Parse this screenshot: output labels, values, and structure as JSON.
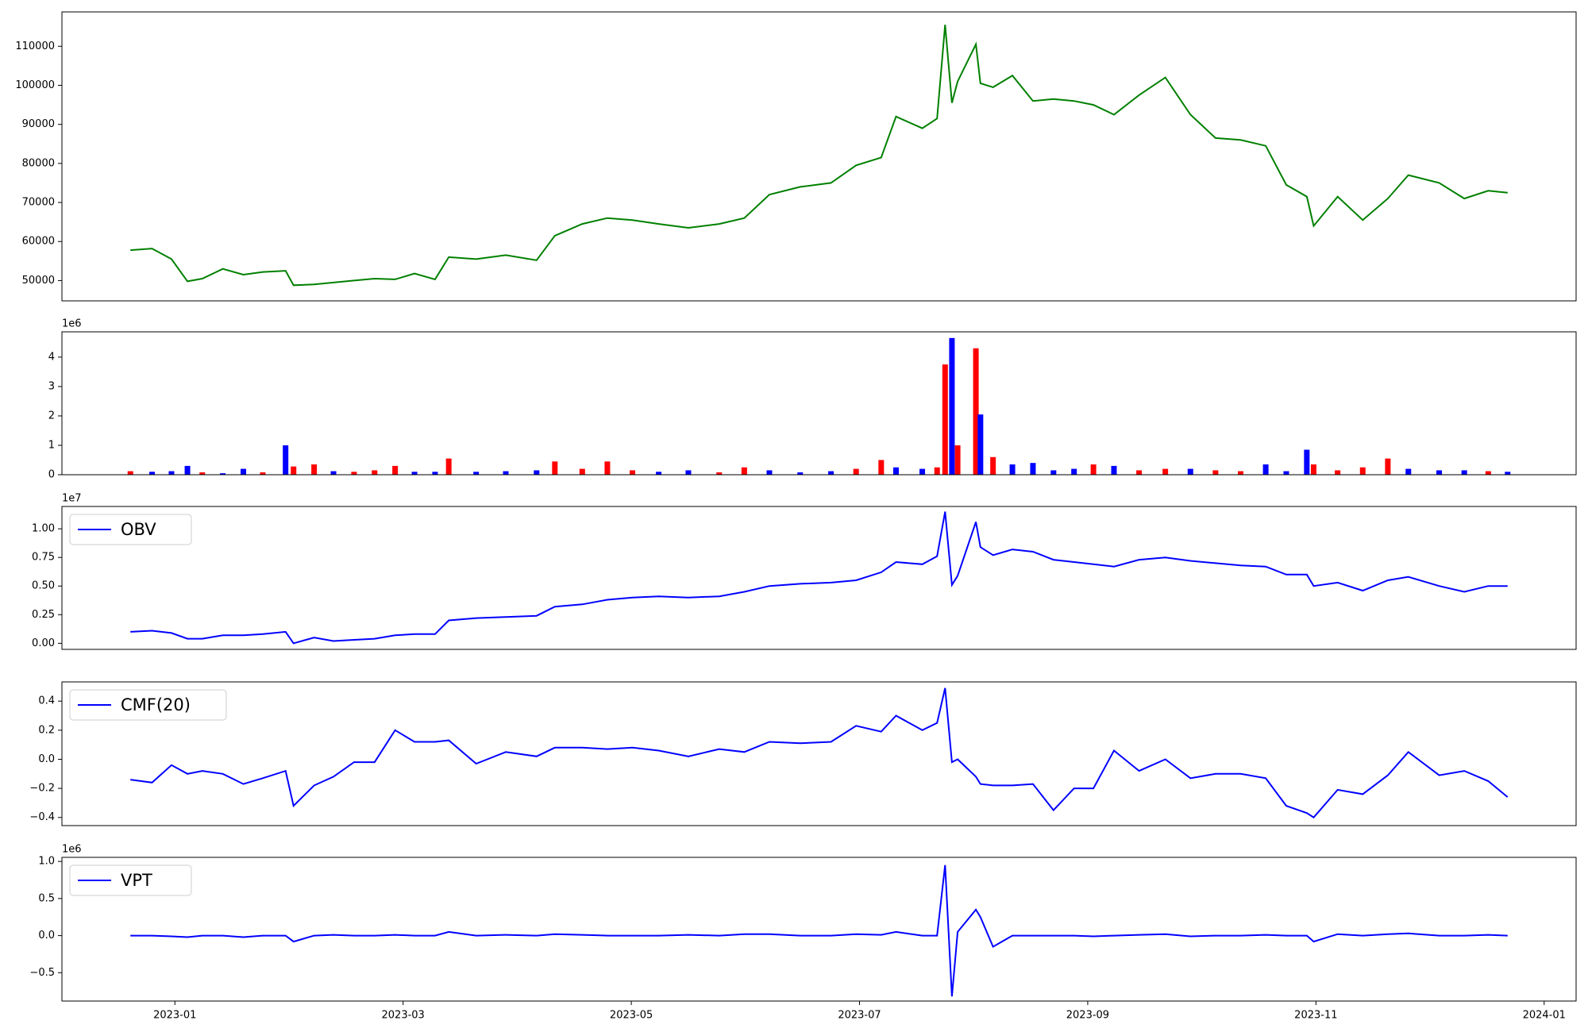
{
  "chart_data": [
    {
      "type": "line",
      "color": "green",
      "x": [
        -0.39,
        -0.2,
        -0.03,
        0.11,
        0.24,
        0.42,
        0.6,
        0.77,
        0.97,
        1.04,
        1.22,
        1.39,
        1.57,
        1.75,
        1.93,
        2.1,
        2.28,
        2.4,
        2.64,
        2.9,
        3.17,
        3.33,
        3.57,
        3.79,
        4.01,
        4.24,
        4.5,
        4.77,
        4.99,
        5.21,
        5.48,
        5.75,
        5.97,
        6.19,
        6.32,
        6.55,
        6.68,
        6.75,
        6.81,
        6.86,
        7.02,
        7.06,
        7.17,
        7.34,
        7.52,
        7.7,
        7.88,
        8.05,
        8.23,
        8.45,
        8.68,
        8.9,
        9.12,
        9.34,
        9.56,
        9.74,
        9.92,
        9.98,
        10.19,
        10.41,
        10.63,
        10.81,
        11.08,
        11.3,
        11.51,
        11.68
      ],
      "values": [
        57800,
        58200,
        55500,
        49800,
        50500,
        53000,
        51500,
        52200,
        52500,
        48800,
        49000,
        49500,
        50000,
        50500,
        50300,
        51800,
        50300,
        56000,
        55500,
        56500,
        55200,
        61500,
        64500,
        66000,
        65500,
        64500,
        63500,
        64500,
        66000,
        72000,
        74000,
        75000,
        79500,
        81500,
        92000,
        89000,
        91500,
        115500,
        95500,
        101000,
        110500,
        100500,
        99500,
        102500,
        96000,
        96500,
        96000,
        95000,
        92500,
        97500,
        102000,
        92500,
        86500,
        86000,
        84500,
        74500,
        71500,
        64000,
        71500,
        65500,
        71000,
        77000,
        75000,
        71000,
        73000,
        72500
      ],
      "ylim": [
        44800,
        118800
      ],
      "yticks": [
        50000,
        60000,
        70000,
        80000,
        90000,
        100000,
        110000
      ]
    },
    {
      "type": "bar",
      "y_offset_label": "1e6",
      "x": [
        -0.39,
        -0.2,
        -0.03,
        0.11,
        0.24,
        0.42,
        0.6,
        0.77,
        0.97,
        1.04,
        1.22,
        1.39,
        1.57,
        1.75,
        1.93,
        2.1,
        2.28,
        2.4,
        2.64,
        2.9,
        3.17,
        3.33,
        3.57,
        3.79,
        4.01,
        4.24,
        4.5,
        4.77,
        4.99,
        5.21,
        5.48,
        5.75,
        5.97,
        6.19,
        6.32,
        6.55,
        6.68,
        6.75,
        6.81,
        6.86,
        7.02,
        7.06,
        7.17,
        7.34,
        7.52,
        7.7,
        7.88,
        8.05,
        8.23,
        8.45,
        8.68,
        8.9,
        9.12,
        9.34,
        9.56,
        9.74,
        9.92,
        9.98,
        10.19,
        10.41,
        10.63,
        10.81,
        11.08,
        11.3,
        11.51,
        11.68
      ],
      "values": [
        0.12,
        0.1,
        0.12,
        0.3,
        0.08,
        0.05,
        0.2,
        0.08,
        1.0,
        0.28,
        0.35,
        0.12,
        0.1,
        0.15,
        0.3,
        0.1,
        0.1,
        0.55,
        0.1,
        0.12,
        0.15,
        0.45,
        0.2,
        0.45,
        0.15,
        0.1,
        0.15,
        0.08,
        0.25,
        0.15,
        0.08,
        0.12,
        0.2,
        0.5,
        0.25,
        0.2,
        0.25,
        3.75,
        4.65,
        1.0,
        4.3,
        2.05,
        0.6,
        0.35,
        0.4,
        0.15,
        0.2,
        0.35,
        0.3,
        0.15,
        0.2,
        0.2,
        0.15,
        0.12,
        0.35,
        0.12,
        0.85,
        0.35,
        0.15,
        0.25,
        0.55,
        0.2,
        0.15,
        0.15,
        0.12,
        0.1
      ],
      "colors": [
        "red",
        "blue",
        "blue",
        "blue",
        "red",
        "blue",
        "blue",
        "red",
        "blue",
        "red",
        "red",
        "blue",
        "red",
        "red",
        "red",
        "blue",
        "blue",
        "red",
        "blue",
        "blue",
        "blue",
        "red",
        "red",
        "red",
        "red",
        "blue",
        "blue",
        "red",
        "red",
        "blue",
        "blue",
        "blue",
        "red",
        "red",
        "blue",
        "blue",
        "red",
        "red",
        "blue",
        "red",
        "red",
        "blue",
        "red",
        "blue",
        "blue",
        "blue",
        "blue",
        "red",
        "blue",
        "red",
        "red",
        "blue",
        "red",
        "red",
        "blue",
        "blue",
        "blue",
        "red",
        "red",
        "red",
        "red",
        "blue",
        "blue",
        "blue",
        "red",
        "blue"
      ],
      "ylim": [
        0,
        4.86
      ],
      "yticks": [
        0,
        1,
        2,
        3,
        4
      ]
    },
    {
      "type": "line",
      "y_offset_label": "1e7",
      "legend": "upper left",
      "x": [
        -0.39,
        -0.2,
        -0.03,
        0.11,
        0.24,
        0.42,
        0.6,
        0.77,
        0.97,
        1.04,
        1.22,
        1.39,
        1.57,
        1.75,
        1.93,
        2.1,
        2.28,
        2.4,
        2.64,
        2.9,
        3.17,
        3.33,
        3.57,
        3.79,
        4.01,
        4.24,
        4.5,
        4.77,
        4.99,
        5.21,
        5.48,
        5.75,
        5.97,
        6.19,
        6.32,
        6.55,
        6.68,
        6.75,
        6.81,
        6.86,
        7.02,
        7.06,
        7.17,
        7.34,
        7.52,
        7.7,
        7.88,
        8.05,
        8.23,
        8.45,
        8.68,
        8.9,
        9.12,
        9.34,
        9.56,
        9.74,
        9.92,
        9.98,
        10.19,
        10.41,
        10.63,
        10.81,
        11.08,
        11.3,
        11.51,
        11.68
      ],
      "series": [
        {
          "name": "OBV",
          "color": "blue",
          "values": [
            0.1,
            0.11,
            0.09,
            0.04,
            0.04,
            0.07,
            0.07,
            0.08,
            0.1,
            0.0,
            0.05,
            0.02,
            0.03,
            0.04,
            0.07,
            0.08,
            0.08,
            0.2,
            0.22,
            0.23,
            0.24,
            0.32,
            0.34,
            0.38,
            0.4,
            0.41,
            0.4,
            0.41,
            0.45,
            0.5,
            0.52,
            0.53,
            0.55,
            0.62,
            0.71,
            0.69,
            0.76,
            1.15,
            0.51,
            0.59,
            1.06,
            0.84,
            0.77,
            0.82,
            0.8,
            0.73,
            0.71,
            0.69,
            0.67,
            0.73,
            0.75,
            0.72,
            0.7,
            0.68,
            0.67,
            0.6,
            0.6,
            0.5,
            0.53,
            0.46,
            0.55,
            0.58,
            0.5,
            0.45,
            0.5,
            0.5
          ]
        }
      ],
      "ylim": [
        -0.053,
        1.195
      ],
      "yticks": [
        {
          "value": 0,
          "label": "0.00"
        },
        {
          "value": 0.25,
          "label": "0.25"
        },
        {
          "value": 0.5,
          "label": "0.50"
        },
        {
          "value": 0.75,
          "label": "0.75"
        },
        {
          "value": 1,
          "label": "1.00"
        }
      ]
    },
    {
      "type": "line",
      "legend": "upper left",
      "x": [
        -0.39,
        -0.2,
        -0.03,
        0.11,
        0.24,
        0.42,
        0.6,
        0.77,
        0.97,
        1.04,
        1.22,
        1.39,
        1.57,
        1.75,
        1.93,
        2.1,
        2.28,
        2.4,
        2.64,
        2.9,
        3.17,
        3.33,
        3.57,
        3.79,
        4.01,
        4.24,
        4.5,
        4.77,
        4.99,
        5.21,
        5.48,
        5.75,
        5.97,
        6.19,
        6.32,
        6.55,
        6.68,
        6.75,
        6.81,
        6.86,
        7.02,
        7.06,
        7.17,
        7.34,
        7.52,
        7.7,
        7.88,
        8.05,
        8.23,
        8.45,
        8.68,
        8.9,
        9.12,
        9.34,
        9.56,
        9.74,
        9.92,
        9.98,
        10.19,
        10.41,
        10.63,
        10.81,
        11.08,
        11.3,
        11.51,
        11.68
      ],
      "series": [
        {
          "name": "CMF(20)",
          "color": "blue",
          "values": [
            -0.14,
            -0.16,
            -0.04,
            -0.1,
            -0.08,
            -0.1,
            -0.17,
            -0.13,
            -0.08,
            -0.32,
            -0.18,
            -0.12,
            -0.02,
            -0.02,
            0.2,
            0.12,
            0.12,
            0.13,
            -0.03,
            0.05,
            0.02,
            0.08,
            0.08,
            0.07,
            0.08,
            0.06,
            0.02,
            0.07,
            0.05,
            0.12,
            0.11,
            0.12,
            0.23,
            0.19,
            0.3,
            0.2,
            0.25,
            0.49,
            -0.02,
            0.0,
            -0.12,
            -0.17,
            -0.18,
            -0.18,
            -0.17,
            -0.35,
            -0.2,
            -0.2,
            0.06,
            -0.08,
            0.0,
            -0.13,
            -0.1,
            -0.1,
            -0.13,
            -0.32,
            -0.37,
            -0.4,
            -0.21,
            -0.24,
            -0.11,
            0.05,
            -0.11,
            -0.08,
            -0.15,
            -0.26
          ]
        }
      ],
      "ylim": [
        -0.456,
        0.532
      ],
      "yticks": [
        {
          "value": -0.4,
          "label": "−0.4"
        },
        {
          "value": -0.2,
          "label": "−0.2"
        },
        {
          "value": 0,
          "label": "0.0"
        },
        0.2,
        0.4
      ]
    },
    {
      "type": "line",
      "y_offset_label": "1e6",
      "legend": "upper left",
      "x": [
        -0.39,
        -0.2,
        -0.03,
        0.11,
        0.24,
        0.42,
        0.6,
        0.77,
        0.97,
        1.04,
        1.22,
        1.39,
        1.57,
        1.75,
        1.93,
        2.1,
        2.28,
        2.4,
        2.64,
        2.9,
        3.17,
        3.33,
        3.57,
        3.79,
        4.01,
        4.24,
        4.5,
        4.77,
        4.99,
        5.21,
        5.48,
        5.75,
        5.97,
        6.19,
        6.32,
        6.55,
        6.68,
        6.75,
        6.81,
        6.86,
        7.02,
        7.06,
        7.17,
        7.34,
        7.52,
        7.7,
        7.88,
        8.05,
        8.23,
        8.45,
        8.68,
        8.9,
        9.12,
        9.34,
        9.56,
        9.74,
        9.92,
        9.98,
        10.19,
        10.41,
        10.63,
        10.81,
        11.08,
        11.3,
        11.51,
        11.68
      ],
      "series": [
        {
          "name": "VPT",
          "color": "blue",
          "values": [
            0,
            0,
            -0.01,
            -0.02,
            0,
            0,
            -0.02,
            0,
            0,
            -0.08,
            0,
            0.01,
            0,
            0,
            0.01,
            0,
            0,
            0.05,
            0,
            0.01,
            0,
            0.02,
            0.01,
            0,
            0,
            0,
            0.01,
            0,
            0.02,
            0.02,
            0,
            0,
            0.02,
            0.01,
            0.05,
            0,
            0,
            0.95,
            -0.82,
            0.05,
            0.35,
            0.25,
            -0.15,
            0,
            0,
            0,
            0,
            -0.01,
            0,
            0.01,
            0.02,
            -0.01,
            0,
            0,
            0.01,
            0,
            0,
            -0.08,
            0.02,
            0,
            0.02,
            0.03,
            0,
            0,
            0.01,
            0
          ]
        }
      ],
      "ylim": [
        -0.882,
        1.055
      ],
      "yticks": [
        {
          "value": -0.5,
          "label": "−0.5"
        },
        {
          "value": 0,
          "label": "0.0"
        },
        {
          "value": 0.5,
          "label": "0.5"
        },
        {
          "value": 1,
          "label": "1.0"
        }
      ],
      "xlim": [
        -0.99,
        12.28
      ],
      "xticks": [
        {
          "value": 0,
          "label": "2023-01"
        },
        {
          "value": 2,
          "label": "2023-03"
        },
        {
          "value": 4,
          "label": "2023-05"
        },
        {
          "value": 6,
          "label": "2023-07"
        },
        {
          "value": 8,
          "label": "2023-09"
        },
        {
          "value": 10,
          "label": "2023-11"
        },
        {
          "value": 12,
          "label": "2024-01"
        }
      ]
    }
  ]
}
